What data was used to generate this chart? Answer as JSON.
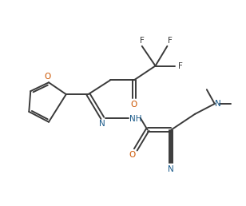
{
  "bg_color": "#ffffff",
  "line_color": "#3a3a3a",
  "atom_colors": {
    "O": "#cc5500",
    "N": "#1a5a8a",
    "F": "#3a3a3a",
    "C": "#3a3a3a"
  },
  "figsize": [
    3.08,
    2.58
  ],
  "dpi": 100,
  "lw": 1.4,
  "fs": 7.5
}
